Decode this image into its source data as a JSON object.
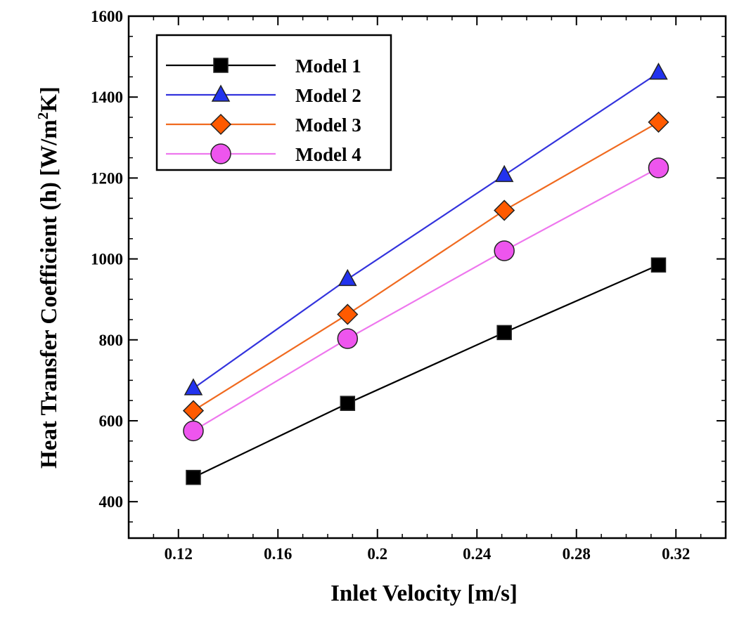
{
  "chart_data": {
    "type": "line",
    "xlabel": "Inlet Velocity [m/s]",
    "ylabel": "Heat Transfer Coefficient (h) [W/m²K]",
    "ylabel_parts": {
      "main": "Heat Transfer Coefficient (h) [W/m",
      "sup": "2",
      "tail": "K]"
    },
    "xlim": [
      0.1,
      0.34
    ],
    "ylim": [
      310,
      1600
    ],
    "x_ticks": [
      0.12,
      0.16,
      0.2,
      0.24,
      0.28,
      0.32
    ],
    "x_tick_labels": [
      "0.12",
      "0.16",
      "0.2",
      "0.24",
      "0.28",
      "0.32"
    ],
    "y_ticks": [
      400,
      600,
      800,
      1000,
      1200,
      1400,
      1600
    ],
    "y_tick_labels": [
      "400",
      "600",
      "800",
      "1000",
      "1200",
      "1400",
      "1600"
    ],
    "grid": false,
    "legend_position": "top-left",
    "x": [
      0.126,
      0.188,
      0.251,
      0.313
    ],
    "series": [
      {
        "name": "Model 1",
        "values": [
          460,
          643,
          818,
          985
        ],
        "color": "#000000",
        "marker": "square",
        "marker_fill": "#000000"
      },
      {
        "name": "Model 2",
        "values": [
          680,
          950,
          1207,
          1460
        ],
        "color": "#3333dd",
        "marker": "triangle",
        "marker_fill": "#2233ee"
      },
      {
        "name": "Model 3",
        "values": [
          625,
          863,
          1120,
          1338
        ],
        "color": "#f06a1f",
        "marker": "diamond",
        "marker_fill": "#ff5a00"
      },
      {
        "name": "Model 4",
        "values": [
          575,
          803,
          1020,
          1225
        ],
        "color": "#ee77ee",
        "marker": "circle",
        "marker_fill": "#ee55ee"
      }
    ]
  }
}
